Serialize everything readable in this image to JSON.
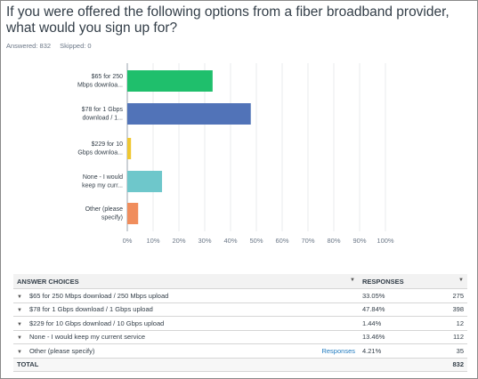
{
  "question": "If you were offered the following options from a fiber broadband provider, what would you sign up for?",
  "answered_label": "Answered: 832",
  "skipped_label": "Skipped: 0",
  "chart_data": {
    "type": "bar",
    "orientation": "horizontal",
    "categories": [
      [
        "$65 for 250",
        "Mbps downloa..."
      ],
      [
        "$78 for 1 Gbps",
        "download / 1..."
      ],
      [
        "$229 for 10",
        "Gbps downloa..."
      ],
      [
        "None - I would",
        "keep my curr..."
      ],
      [
        "Other (please",
        "specify)"
      ]
    ],
    "values": [
      33.05,
      47.84,
      1.44,
      13.46,
      4.21
    ],
    "colors": [
      "#1fbf6c",
      "#5173b8",
      "#f0c730",
      "#6ec7cb",
      "#f08d5c"
    ],
    "xlim": [
      0,
      100
    ],
    "x_ticks": [
      "0%",
      "10%",
      "20%",
      "30%",
      "40%",
      "50%",
      "60%",
      "70%",
      "80%",
      "90%",
      "100%"
    ],
    "grid": true,
    "legend": "none"
  },
  "table": {
    "header_choices": "ANSWER CHOICES",
    "header_responses": "RESPONSES",
    "rows": [
      {
        "label": "$65 for 250 Mbps download / 250 Mbps upload",
        "link": "",
        "pct": "33.05%",
        "count": "275"
      },
      {
        "label": "$78 for 1 Gbps download / 1 Gbps upload",
        "link": "",
        "pct": "47.84%",
        "count": "398"
      },
      {
        "label": "$229 for 10 Gbps download / 10 Gbps upload",
        "link": "",
        "pct": "1.44%",
        "count": "12"
      },
      {
        "label": "None - I would keep my current service",
        "link": "",
        "pct": "13.46%",
        "count": "112"
      },
      {
        "label": "Other (please specify)",
        "link": "Responses",
        "pct": "4.21%",
        "count": "35"
      }
    ],
    "total_label": "TOTAL",
    "total_count": "832"
  }
}
